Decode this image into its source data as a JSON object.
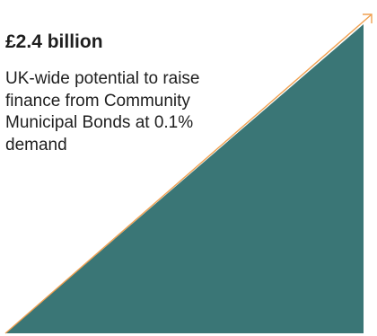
{
  "stat": {
    "value": "£2.4 billion",
    "description": "UK-wide potential to raise finance from Community Municipal Bonds at 0.1% demand"
  },
  "colors": {
    "triangle_fill": "#3a7676",
    "arrow_stroke": "#f0a050",
    "text": "#1e1e1e"
  },
  "icons": {
    "growth_graphic": "rising-triangle-with-arrow"
  }
}
